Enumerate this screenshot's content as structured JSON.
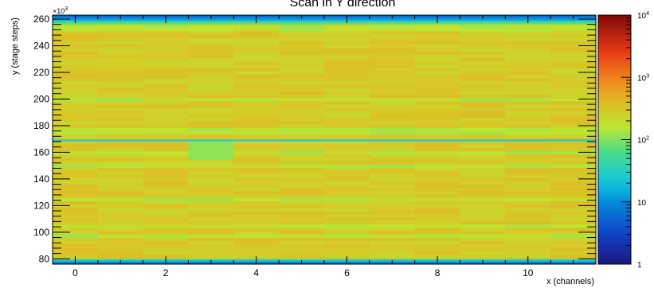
{
  "chart_data": {
    "type": "heatmap",
    "title": "Scan in Y direction",
    "xlabel": "x (channels)",
    "ylabel": "y (stage steps)",
    "y_multiplier_label": "×10",
    "y_multiplier_exp": "3",
    "xlim": [
      -0.5,
      11.5
    ],
    "ylim": [
      76,
      263
    ],
    "x_ticks": [
      0,
      2,
      4,
      6,
      8,
      10
    ],
    "x_tick_labels": [
      "0",
      "2",
      "4",
      "6",
      "8",
      "10"
    ],
    "y_ticks": [
      80,
      100,
      120,
      140,
      160,
      180,
      200,
      220,
      240,
      260
    ],
    "y_tick_labels": [
      "80",
      "100",
      "120",
      "140",
      "160",
      "180",
      "200",
      "220",
      "240",
      "260"
    ],
    "colorbar": {
      "scale": "log",
      "range": [
        1,
        10000
      ],
      "tick_labels": [
        {
          "base": "1",
          "exp": ""
        },
        {
          "base": "10",
          "exp": ""
        },
        {
          "base": "10",
          "exp": "2"
        },
        {
          "base": "10",
          "exp": "3"
        },
        {
          "base": "10",
          "exp": "4"
        }
      ]
    },
    "channels": 12,
    "typical_counts": 300,
    "low_count_rows": [
      {
        "y_from": 76,
        "y_to": 77.5,
        "counts": 6
      },
      {
        "y_from": 77.5,
        "y_to": 79,
        "counts": 18
      },
      {
        "y_from": 79,
        "y_to": 80,
        "counts": 60
      },
      {
        "y_from": 168.3,
        "y_to": 169.6,
        "counts": 25
      },
      {
        "y_from": 256,
        "y_to": 257.5,
        "counts": 70
      },
      {
        "y_from": 257.5,
        "y_to": 259,
        "counts": 30
      },
      {
        "y_from": 259,
        "y_to": 261,
        "counts": 12
      },
      {
        "y_from": 261,
        "y_to": 263,
        "counts": 6
      }
    ],
    "bright_block": {
      "x_from": 2.5,
      "x_to": 3.5,
      "y_from": 154,
      "y_to": 168,
      "counts": 110
    }
  }
}
